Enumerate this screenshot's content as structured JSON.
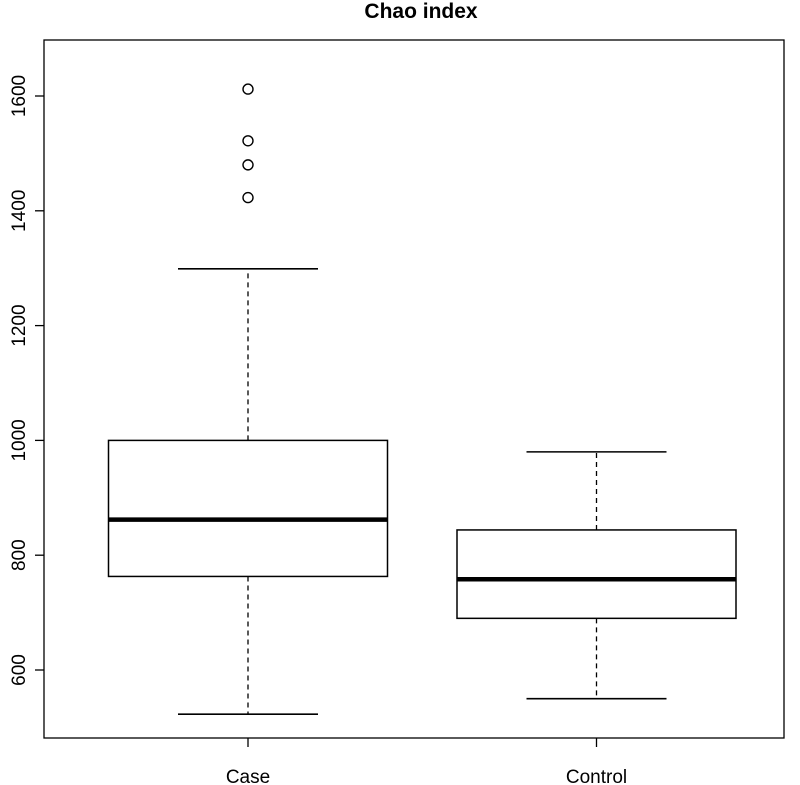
{
  "chart_data": {
    "type": "boxplot",
    "title": "Chao index",
    "xlabel": "",
    "ylabel": "",
    "ylim": [
      495,
      1650
    ],
    "yticks": [
      600,
      800,
      1000,
      1200,
      1400,
      1600
    ],
    "ytick_labels": [
      "600",
      "800",
      "1000",
      "1200",
      "1400",
      "1600"
    ],
    "grid": false,
    "categories": [
      "Case",
      "Control"
    ],
    "boxes": [
      {
        "category": "Case",
        "whisker_low": 523,
        "q1": 763,
        "median": 862,
        "q3": 1000,
        "whisker_high": 1299,
        "outliers": [
          1423,
          1480,
          1522,
          1612
        ]
      },
      {
        "category": "Control",
        "whisker_low": 550,
        "q1": 690,
        "median": 758,
        "q3": 844,
        "whisker_high": 980,
        "outliers": []
      }
    ]
  }
}
